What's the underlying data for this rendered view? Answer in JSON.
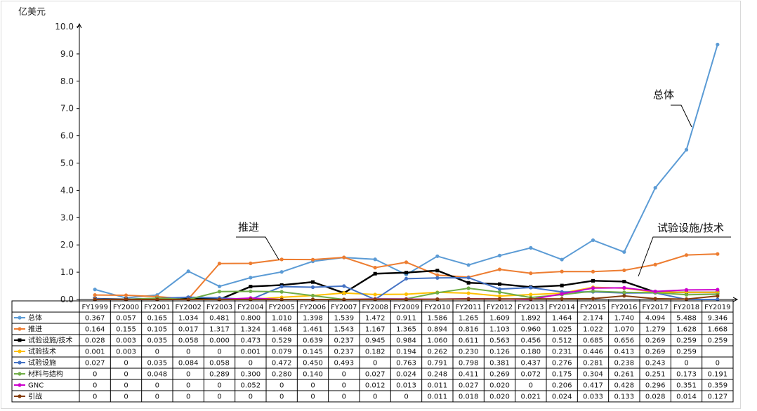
{
  "chart_data": {
    "type": "line",
    "unit_label": "亿美元",
    "ylim": [
      0,
      10
    ],
    "yticks": [
      "0.0",
      "1.0",
      "2.0",
      "3.0",
      "4.0",
      "5.0",
      "6.0",
      "7.0",
      "8.0",
      "9.0",
      "10.0"
    ],
    "categories": [
      "FY1999",
      "FY2000",
      "FY2001",
      "FY2002",
      "FY2003",
      "FY2004",
      "FY2005",
      "FY2006",
      "FY2007",
      "FY2008",
      "FY2009",
      "FY2010",
      "FY2011",
      "FY2012",
      "FY2013",
      "FY2014",
      "FY2015",
      "FY2016",
      "FY2017",
      "FY2018",
      "FY2019"
    ],
    "series": [
      {
        "name": "总体",
        "color": "#5b9bd5",
        "marker": "circle",
        "values": [
          0.367,
          0.057,
          0.165,
          1.034,
          0.481,
          0.8,
          1.01,
          1.398,
          1.539,
          1.472,
          0.911,
          1.586,
          1.265,
          1.609,
          1.892,
          1.464,
          2.174,
          1.74,
          4.094,
          5.488,
          9.346
        ],
        "labels": [
          "0.367",
          "0.057",
          "0.165",
          "1.034",
          "0.481",
          "0.800",
          "1.010",
          "1.398",
          "1.539",
          "1.472",
          "0.911",
          "1.586",
          "1.265",
          "1.609",
          "1.892",
          "1.464",
          "2.174",
          "1.740",
          "4.094",
          "5.488",
          "9.346"
        ]
      },
      {
        "name": "推进",
        "color": "#ed7d31",
        "marker": "circle",
        "values": [
          0.164,
          0.155,
          0.105,
          0.017,
          1.317,
          1.324,
          1.468,
          1.461,
          1.543,
          1.167,
          1.365,
          0.894,
          0.816,
          1.103,
          0.96,
          1.025,
          1.022,
          1.07,
          1.279,
          1.628,
          1.668
        ],
        "labels": [
          "0.164",
          "0.155",
          "0.105",
          "0.017",
          "1.317",
          "1.324",
          "1.468",
          "1.461",
          "1.543",
          "1.167",
          "1.365",
          "0.894",
          "0.816",
          "1.103",
          "0.960",
          "1.025",
          "1.022",
          "1.070",
          "1.279",
          "1.628",
          "1.668"
        ]
      },
      {
        "name": "试验设施/技术",
        "color": "#000000",
        "marker": "square",
        "values": [
          0.028,
          0.003,
          0.035,
          0.058,
          0.0,
          0.473,
          0.529,
          0.639,
          0.237,
          0.945,
          0.984,
          1.06,
          0.611,
          0.563,
          0.456,
          0.512,
          0.685,
          0.656,
          0.269,
          0.259,
          0.259
        ],
        "labels": [
          "0.028",
          "0.003",
          "0.035",
          "0.058",
          "0.000",
          "0.473",
          "0.529",
          "0.639",
          "0.237",
          "0.945",
          "0.984",
          "1.060",
          "0.611",
          "0.563",
          "0.456",
          "0.512",
          "0.685",
          "0.656",
          "0.269",
          "0.259",
          "0.259"
        ]
      },
      {
        "name": "试验技术",
        "color": "#ffc000",
        "marker": "circle",
        "values": [
          0.001,
          0.003,
          0,
          0,
          0,
          0.001,
          0.079,
          0.145,
          0.237,
          0.182,
          0.194,
          0.262,
          0.23,
          0.126,
          0.18,
          0.231,
          0.446,
          0.413,
          0.269,
          0.259,
          0.259
        ],
        "labels": [
          "0.001",
          "0.003",
          "0",
          "0",
          "0",
          "0.001",
          "0.079",
          "0.145",
          "0.237",
          "0.182",
          "0.194",
          "0.262",
          "0.230",
          "0.126",
          "0.180",
          "0.231",
          "0.446",
          "0.413",
          "0.269",
          "0.259",
          ""
        ]
      },
      {
        "name": "试验设施",
        "color": "#4472c4",
        "marker": "circle",
        "values": [
          0.027,
          0,
          0.035,
          0.084,
          0.058,
          0,
          0.472,
          0.45,
          0.493,
          0,
          0.763,
          0.791,
          0.798,
          0.381,
          0.437,
          0.276,
          0.281,
          0.238,
          0.243,
          0,
          0
        ],
        "labels": [
          "0.027",
          "0",
          "0.035",
          "0.084",
          "0.058",
          "0",
          "0.472",
          "0.450",
          "0.493",
          "0",
          "0.763",
          "0.791",
          "0.798",
          "0.381",
          "0.437",
          "0.276",
          "0.281",
          "0.238",
          "0.243",
          "0",
          "0"
        ]
      },
      {
        "name": "材料与结构",
        "color": "#70ad47",
        "marker": "circle",
        "values": [
          0,
          0,
          0.048,
          0,
          0.289,
          0.3,
          0.28,
          0.14,
          0,
          0.027,
          0.024,
          0.248,
          0.411,
          0.269,
          0.072,
          0.175,
          0.304,
          0.261,
          0.251,
          0.173,
          0.191
        ],
        "labels": [
          "0",
          "0",
          "0.048",
          "0",
          "0.289",
          "0.300",
          "0.280",
          "0.140",
          "0",
          "0.027",
          "0.024",
          "0.248",
          "0.411",
          "0.269",
          "0.072",
          "0.175",
          "0.304",
          "0.261",
          "0.251",
          "0.173",
          "0.191"
        ]
      },
      {
        "name": "GNC",
        "color": "#cc00cc",
        "marker": "circle",
        "values": [
          0,
          0,
          0,
          0,
          0,
          0.052,
          0,
          0,
          0,
          0.012,
          0.013,
          0.011,
          0.027,
          0.02,
          0,
          0.206,
          0.417,
          0.428,
          0.296,
          0.351,
          0.359
        ],
        "labels": [
          "0",
          "0",
          "0",
          "0",
          "0",
          "0.052",
          "0",
          "0",
          "0",
          "0.012",
          "0.013",
          "0.011",
          "0.027",
          "0.020",
          "0",
          "0.206",
          "0.417",
          "0.428",
          "0.296",
          "0.351",
          "0.359"
        ]
      },
      {
        "name": "引战",
        "color": "#843c0c",
        "marker": "circle",
        "values": [
          0,
          0,
          0,
          0,
          0,
          0,
          0,
          0,
          0,
          0,
          0,
          0.011,
          0.018,
          0.02,
          0.021,
          0.024,
          0.033,
          0.133,
          0.028,
          0.014,
          0.127
        ],
        "labels": [
          "0",
          "0",
          "0",
          "0",
          "0",
          "0",
          "0",
          "0",
          "0",
          "0",
          "0",
          "0.011",
          "0.018",
          "0.020",
          "0.021",
          "0.024",
          "0.033",
          "0.133",
          "0.028",
          "0.014",
          "0.127"
        ]
      }
    ],
    "annotations": [
      {
        "text": "总体",
        "series": "总体"
      },
      {
        "text": "推进",
        "series": "推进"
      },
      {
        "text": "试验设施/技术",
        "series": "试验设施/技术"
      }
    ],
    "grid": false,
    "legend": "table-below"
  }
}
